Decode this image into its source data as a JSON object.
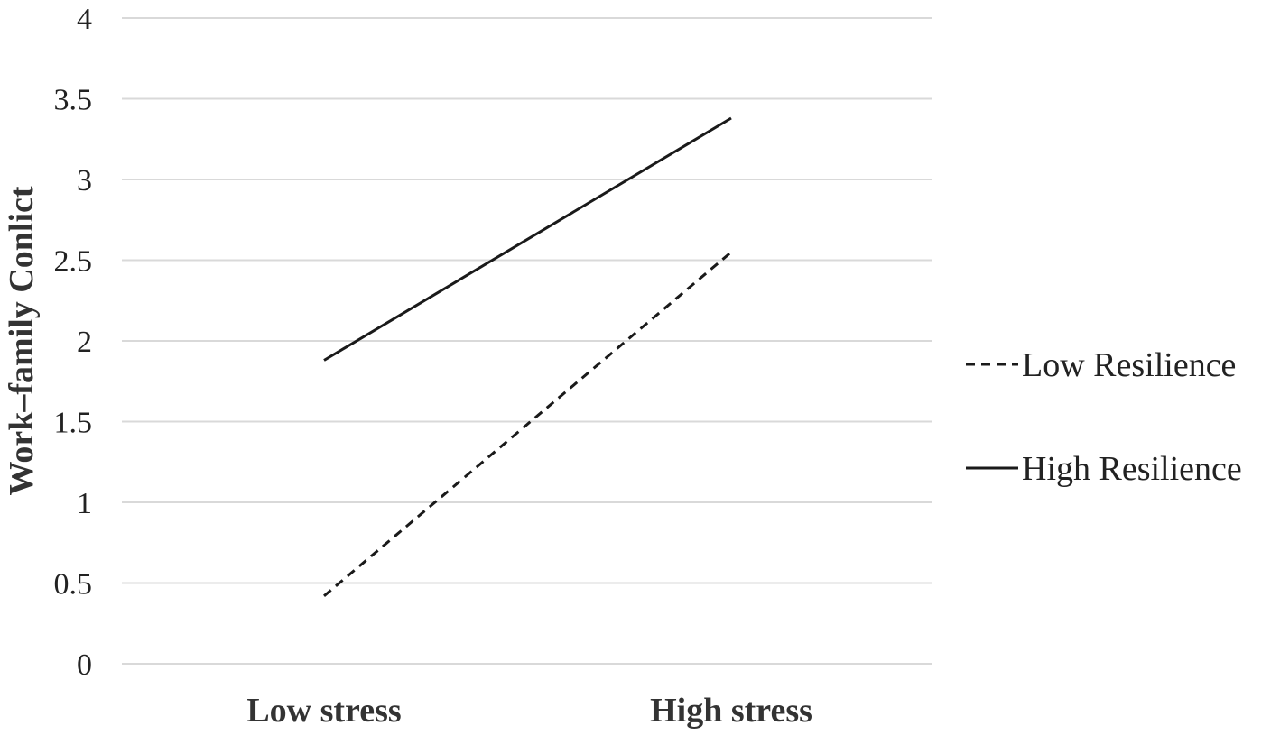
{
  "chart_data": {
    "type": "line",
    "title": "",
    "xlabel": "",
    "ylabel": "Work–family Conlict",
    "categories": [
      "Low stress",
      "High stress"
    ],
    "ylim": [
      0,
      4
    ],
    "yticks": [
      "0",
      "0.5",
      "1",
      "1.5",
      "2",
      "2.5",
      "3",
      "3.5",
      "4"
    ],
    "grid": true,
    "legend_position": "right",
    "series": [
      {
        "name": "Low Resilience",
        "values": [
          0.42,
          2.55
        ],
        "style": "dashed",
        "color": "#1a1a1a"
      },
      {
        "name": "High Resilience",
        "values": [
          1.88,
          3.38
        ],
        "style": "solid",
        "color": "#1a1a1a"
      }
    ]
  }
}
